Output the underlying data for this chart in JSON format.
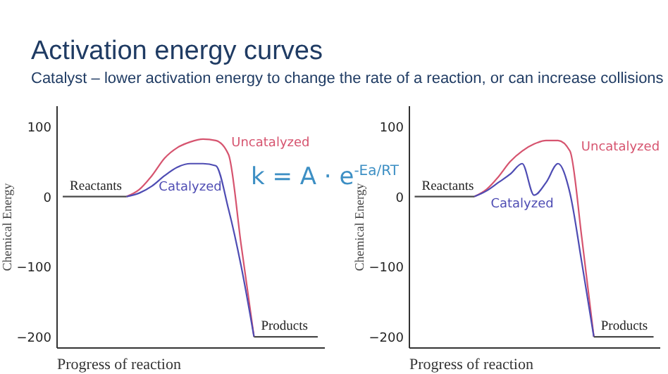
{
  "chart_data": [
    {
      "type": "line",
      "title": "Activation energy curves",
      "subtitle": "Catalyst – lower activation energy to change the rate of a reaction, or can increase collisions",
      "xlabel": "Progress of reaction",
      "ylabel": "Chemical Energy",
      "categories": [
        null,
        null,
        null,
        null,
        null,
        null,
        null,
        null,
        null,
        null,
        null,
        null,
        null,
        null,
        null,
        null,
        null,
        null,
        null,
        null,
        null
      ],
      "series": [
        {
          "name": "Uncatalyzed",
          "color": "#d6546f",
          "values": [
            null,
            null,
            null,
            null,
            null,
            0,
            10,
            30,
            55,
            70,
            78,
            82,
            80,
            60,
            -70,
            -200,
            null,
            null,
            null,
            null,
            null
          ]
        },
        {
          "name": "Catalyzed",
          "color": "#4e4cb3",
          "values": [
            null,
            null,
            null,
            null,
            null,
            0,
            5,
            15,
            30,
            42,
            47,
            47,
            44,
            -18,
            -100,
            -200,
            null,
            null,
            null,
            null,
            null
          ]
        },
        {
          "color": "#4a4a4a",
          "values": [
            0,
            0,
            0,
            0,
            0,
            0,
            null,
            null,
            null,
            null,
            null,
            null,
            null,
            null,
            null,
            null,
            null,
            null,
            null,
            null,
            null
          ]
        },
        {
          "color": "#4a4a4a",
          "values": [
            null,
            null,
            null,
            null,
            null,
            null,
            null,
            null,
            null,
            null,
            null,
            null,
            null,
            null,
            null,
            -200,
            -200,
            -200,
            -200,
            -200,
            -200
          ]
        }
      ],
      "ylim": [
        -215,
        130
      ],
      "yticks": [
        -200,
        -100,
        0,
        100
      ],
      "tick_labels": "y",
      "annotations": [
        "k = A · e$^{-Ea/RT}$",
        {
          "text": "Reactants",
          "y": 0
        },
        {
          "text": "Products",
          "y": -200
        }
      ]
    },
    {
      "type": "line",
      "xlabel": "Progress of reaction",
      "ylabel": "Chemical Energy",
      "categories": [
        null,
        null,
        null,
        null,
        null,
        null,
        null,
        null,
        null,
        null,
        null,
        null,
        null,
        null,
        null,
        null,
        null,
        null,
        null,
        null,
        null
      ],
      "series": [
        {
          "name": "Uncatalyzed",
          "color": "#d6546f",
          "values": [
            null,
            null,
            null,
            null,
            null,
            0,
            10,
            28,
            50,
            65,
            75,
            80,
            80,
            65,
            -60,
            -200,
            null,
            null,
            null,
            null,
            null
          ]
        },
        {
          "name": "Catalyzed",
          "color": "#4e4cb3",
          "values": [
            null,
            null,
            null,
            null,
            null,
            0,
            8,
            20,
            32,
            47,
            2,
            20,
            47,
            5,
            -95,
            -200,
            null,
            null,
            null,
            null,
            null
          ]
        },
        {
          "color": "#4a4a4a",
          "values": [
            0,
            0,
            0,
            0,
            0,
            0,
            null,
            null,
            null,
            null,
            null,
            null,
            null,
            null,
            null,
            null,
            null,
            null,
            null,
            null,
            null
          ]
        },
        {
          "color": "#4a4a4a",
          "values": [
            null,
            null,
            null,
            null,
            null,
            null,
            null,
            null,
            null,
            null,
            null,
            null,
            null,
            null,
            null,
            -200,
            -200,
            -200,
            -200,
            -200,
            -200
          ]
        }
      ],
      "ylim": [
        -215,
        130
      ],
      "yticks": [
        -200,
        -100,
        0,
        100
      ],
      "tick_labels": "y",
      "annotations": [
        {
          "text": "Reactants",
          "y": 0
        },
        {
          "text": "Products",
          "y": -200
        }
      ]
    }
  ]
}
